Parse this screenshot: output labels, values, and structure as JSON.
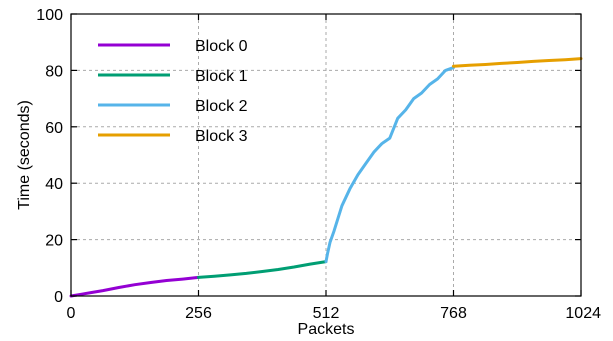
{
  "chart_data": {
    "type": "line",
    "xlabel": "Packets",
    "ylabel": "Time (seconds)",
    "xlim": [
      0,
      1024
    ],
    "ylim": [
      0,
      100
    ],
    "x_ticks": [
      0,
      256,
      512,
      768,
      1024
    ],
    "y_ticks": [
      0,
      20,
      40,
      60,
      80,
      100
    ],
    "grid": true,
    "legend_position": "top-left",
    "series": [
      {
        "name": "Block 0",
        "color": "#9400d3",
        "x": [
          0,
          20,
          40,
          64,
          96,
          128,
          160,
          192,
          224,
          256
        ],
        "y": [
          0,
          0.6,
          1.2,
          1.9,
          3.0,
          4.0,
          4.8,
          5.5,
          6.0,
          6.6
        ]
      },
      {
        "name": "Block 1",
        "color": "#009e73",
        "x": [
          256,
          288,
          320,
          352,
          384,
          416,
          448,
          480,
          512
        ],
        "y": [
          6.6,
          7.0,
          7.5,
          8.0,
          8.7,
          9.4,
          10.3,
          11.3,
          12.2
        ]
      },
      {
        "name": "Block 2",
        "color": "#56b4e9",
        "x": [
          512,
          515,
          520,
          528,
          544,
          560,
          576,
          592,
          608,
          624,
          640,
          656,
          672,
          688,
          704,
          720,
          736,
          752,
          768
        ],
        "y": [
          12.2,
          15,
          19,
          23,
          32,
          38,
          43,
          47,
          51,
          54,
          56,
          63,
          66,
          70,
          72,
          75,
          77,
          80,
          81
        ]
      },
      {
        "name": "Block 3",
        "color": "#e69f00",
        "x": [
          768,
          800,
          832,
          864,
          896,
          928,
          960,
          992,
          1024
        ],
        "y": [
          81.5,
          81.8,
          82.1,
          82.5,
          82.8,
          83.2,
          83.5,
          83.8,
          84.2
        ]
      }
    ]
  }
}
